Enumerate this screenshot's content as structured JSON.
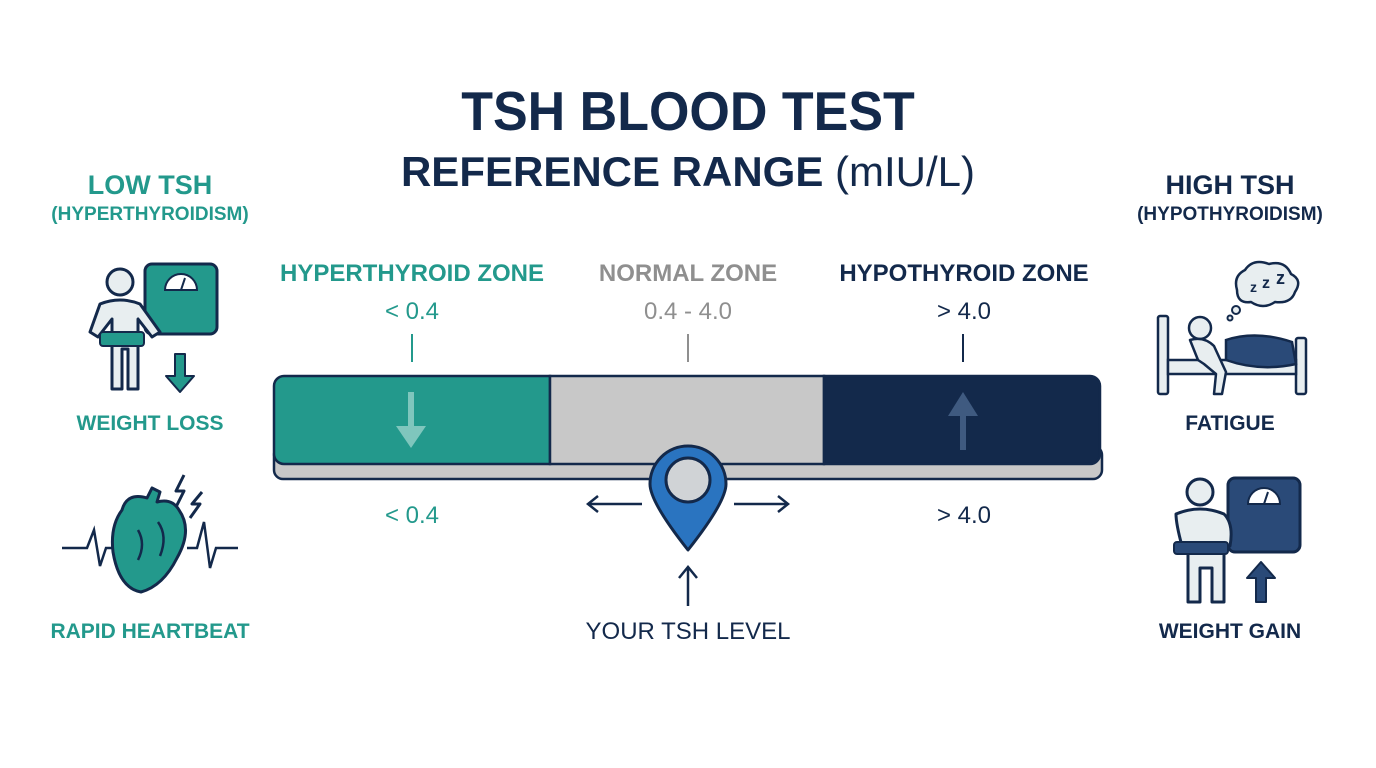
{
  "title": {
    "line1": "TSH BLOOD TEST",
    "line2_bold": "REFERENCE RANGE",
    "line2_unit": "(mIU/L)"
  },
  "left": {
    "header": "LOW TSH",
    "subheader": "(HYPERTHYROIDISM)",
    "symptoms": [
      {
        "label": "WEIGHT LOSS",
        "icon": "weight-loss-icon"
      },
      {
        "label": "RAPID HEARTBEAT",
        "icon": "heartbeat-icon"
      }
    ]
  },
  "right": {
    "header": "HIGH TSH",
    "subheader": "(HYPOTHYROIDISM)",
    "symptoms": [
      {
        "label": "FATIGUE",
        "icon": "fatigue-icon"
      },
      {
        "label": "WEIGHT GAIN",
        "icon": "weight-gain-icon"
      }
    ]
  },
  "zones": [
    {
      "name": "HYPERTHYROID ZONE",
      "range_top": "< 0.4",
      "range_bottom": "< 0.4",
      "color": "#23998c",
      "arrow": "down-arrow-icon"
    },
    {
      "name": "NORMAL ZONE",
      "range_top": "0.4 - 4.0",
      "color": "#c8c8c8"
    },
    {
      "name": "HYPOTHYROID ZONE",
      "range_top": "> 4.0",
      "range_bottom": "> 4.0",
      "color": "#13294b",
      "arrow": "up-arrow-icon"
    }
  ],
  "marker": {
    "label": "YOUR TSH LEVEL",
    "color": "#2a74c0",
    "icon": "location-pin-icon"
  },
  "colors": {
    "teal": "#23998c",
    "navy": "#13294b",
    "grey": "#8f8f8f",
    "blue": "#2a74c0"
  }
}
